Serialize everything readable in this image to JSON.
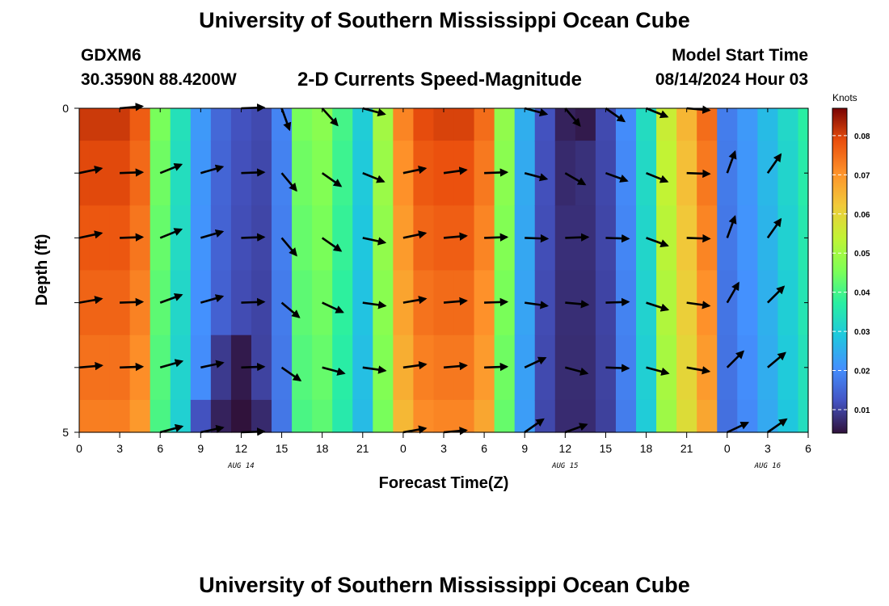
{
  "header": {
    "title": "University of Southern Mississippi Ocean Cube",
    "station": "GDXM6",
    "location": "30.3590N  88.4200W",
    "plot_title": "2-D Currents Speed-Magnitude",
    "model_label": "Model Start Time",
    "model_time": "08/14/2024 Hour 03"
  },
  "footer": {
    "title": "University of Southern Mississippi Ocean Cube"
  },
  "chart_data": {
    "type": "heatmap",
    "title": "2-D Currents Speed-Magnitude",
    "xlabel": "Forecast Time(Z)",
    "ylabel": "Depth (ft)",
    "x_tick_labels": [
      "0",
      "3",
      "6",
      "9",
      "12",
      "15",
      "18",
      "21",
      "0",
      "3",
      "6",
      "9",
      "12",
      "15",
      "18",
      "21",
      "0",
      "3",
      "6"
    ],
    "x_ticks_hours": [
      0,
      3,
      6,
      9,
      12,
      15,
      18,
      21,
      24,
      27,
      30,
      33,
      36,
      39,
      42,
      45,
      48,
      51,
      54
    ],
    "date_labels": [
      {
        "label": "AUG 14",
        "hour": 12
      },
      {
        "label": "AUG 15",
        "hour": 36
      },
      {
        "label": "AUG 16",
        "hour": 51
      }
    ],
    "xlim_hours": [
      0,
      54
    ],
    "y_tick_labels": [
      "0",
      "5"
    ],
    "ylim_ft": [
      0,
      5
    ],
    "colorbar": {
      "label": "Knots",
      "ticks": [
        "0.08",
        "0.07",
        "0.06",
        "0.05",
        "0.04",
        "0.03",
        "0.02",
        "0.01"
      ],
      "tick_values": [
        0.08,
        0.07,
        0.06,
        0.05,
        0.04,
        0.03,
        0.02,
        0.01
      ],
      "range": [
        0.004,
        0.087
      ]
    },
    "depth_rows_ft": [
      0,
      1,
      2,
      3,
      4,
      5
    ],
    "hours": [
      0,
      1.5,
      3,
      4.5,
      6,
      7.5,
      9,
      10.5,
      12,
      13.5,
      15,
      16.5,
      18,
      19.5,
      21,
      22.5,
      24,
      25.5,
      27,
      28.5,
      30,
      31.5,
      33,
      34.5,
      36,
      37.5,
      39,
      40.5,
      42,
      43.5,
      45,
      46.5,
      48,
      49.5,
      51,
      52.5,
      54
    ],
    "speed_knots_profile": [
      0.081,
      0.081,
      0.081,
      0.077,
      0.045,
      0.034,
      0.022,
      0.015,
      0.012,
      0.011,
      0.019,
      0.045,
      0.047,
      0.04,
      0.03,
      0.05,
      0.072,
      0.079,
      0.08,
      0.08,
      0.075,
      0.048,
      0.025,
      0.012,
      0.008,
      0.008,
      0.011,
      0.02,
      0.033,
      0.055,
      0.065,
      0.075,
      0.018,
      0.022,
      0.027,
      0.032,
      0.037
    ],
    "deep_anomaly": [
      {
        "hour": 10.5,
        "depth_ft": 4,
        "speed_knots": 0.009
      },
      {
        "hour": 12,
        "depth_ft": 4,
        "speed_knots": 0.005
      },
      {
        "hour": 10.5,
        "depth_ft": 5,
        "speed_knots": 0.006
      },
      {
        "hour": 12,
        "depth_ft": 5,
        "speed_knots": 0.004
      },
      {
        "hour": 13.5,
        "depth_ft": 5,
        "speed_knots": 0.007
      },
      {
        "hour": 9,
        "depth_ft": 5,
        "speed_knots": 0.012
      },
      {
        "hour": 36,
        "depth_ft": 0,
        "speed_knots": 0.006
      },
      {
        "hour": 37.5,
        "depth_ft": 0,
        "speed_knots": 0.005
      },
      {
        "hour": 36,
        "depth_ft": 1,
        "speed_knots": 0.007
      }
    ],
    "vectors": {
      "hours": [
        0,
        3,
        6,
        9,
        12,
        15,
        18,
        21,
        24,
        27,
        30,
        33,
        36,
        39,
        42,
        45,
        48,
        51
      ],
      "depths_ft": [
        0,
        1,
        2,
        3,
        4,
        5
      ],
      "direction_deg": [
        [
          null,
          5,
          null,
          null,
          2,
          -70,
          -48,
          -15,
          null,
          null,
          null,
          -15,
          -50,
          -35,
          -22,
          -5,
          null,
          null
        ],
        [
          12,
          2,
          22,
          16,
          2,
          -50,
          -35,
          -22,
          12,
          8,
          2,
          -15,
          -30,
          -20,
          -22,
          -2,
          70,
          55
        ],
        [
          12,
          2,
          22,
          16,
          2,
          -50,
          -35,
          -12,
          12,
          5,
          2,
          -2,
          2,
          -2,
          -20,
          -2,
          70,
          55
        ],
        [
          10,
          2,
          20,
          16,
          2,
          -40,
          -25,
          -8,
          10,
          5,
          2,
          -8,
          -5,
          2,
          -18,
          -8,
          60,
          45
        ],
        [
          5,
          2,
          16,
          12,
          2,
          -35,
          -15,
          -8,
          8,
          5,
          2,
          25,
          -15,
          -2,
          -15,
          -10,
          45,
          40
        ],
        [
          null,
          null,
          15,
          12,
          2,
          null,
          null,
          null,
          10,
          5,
          null,
          35,
          20,
          null,
          null,
          null,
          25,
          35
        ]
      ]
    }
  }
}
